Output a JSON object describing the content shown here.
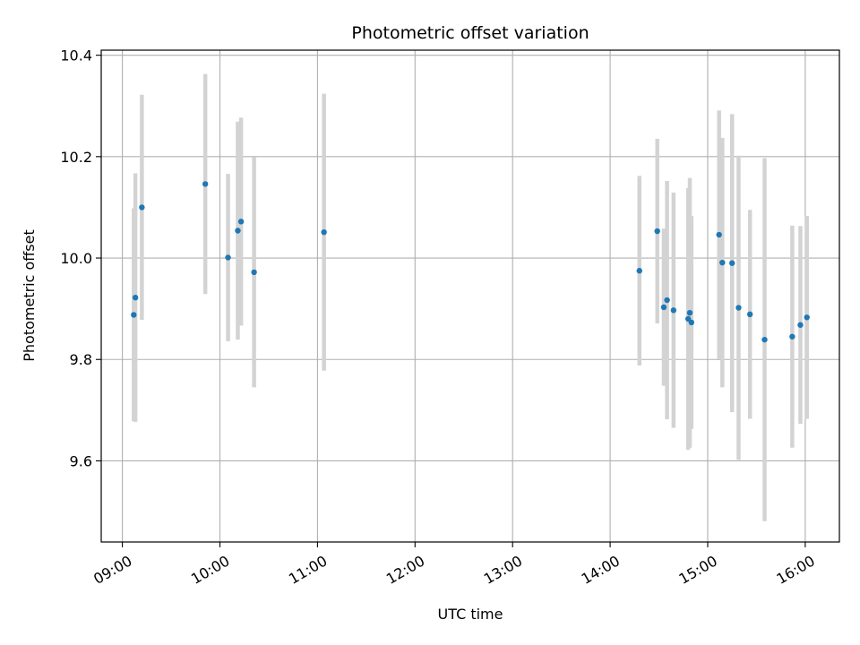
{
  "chart_data": {
    "type": "scatter",
    "title": "Photometric offset variation",
    "xlabel": "UTC time",
    "ylabel": "Photometric offset",
    "grid": true,
    "xlim": [
      "08:47",
      "16:21"
    ],
    "ylim": [
      9.44,
      10.41
    ],
    "x_ticks": [
      "09:00",
      "10:00",
      "11:00",
      "12:00",
      "13:00",
      "14:00",
      "15:00",
      "16:00"
    ],
    "y_ticks": [
      9.6,
      9.8,
      10.0,
      10.2,
      10.4
    ],
    "y_tick_labels": [
      "9.6",
      "9.8",
      "10.0",
      "10.2",
      "10.4"
    ],
    "colors": {
      "point": "#1f77b4",
      "errorbar": "#d3d3d3",
      "grid": "#b0b0b0"
    },
    "points": [
      {
        "t": "09:07",
        "y": 9.888,
        "err": 0.21
      },
      {
        "t": "09:08",
        "y": 9.922,
        "err": 0.245
      },
      {
        "t": "09:12",
        "y": 10.1,
        "err": 0.222
      },
      {
        "t": "09:51",
        "y": 10.146,
        "err": 0.217
      },
      {
        "t": "10:05",
        "y": 10.001,
        "err": 0.165
      },
      {
        "t": "10:11",
        "y": 10.054,
        "err": 0.215
      },
      {
        "t": "10:13",
        "y": 10.072,
        "err": 0.205
      },
      {
        "t": "10:21",
        "y": 9.972,
        "err": 0.227
      },
      {
        "t": "11:04",
        "y": 10.051,
        "err": 0.273
      },
      {
        "t": "14:18",
        "y": 9.975,
        "err": 0.187
      },
      {
        "t": "14:29",
        "y": 10.053,
        "err": 0.182
      },
      {
        "t": "14:33",
        "y": 9.903,
        "err": 0.155
      },
      {
        "t": "14:35",
        "y": 9.917,
        "err": 0.235
      },
      {
        "t": "14:39",
        "y": 9.897,
        "err": 0.232
      },
      {
        "t": "14:48",
        "y": 9.88,
        "err": 0.258
      },
      {
        "t": "14:49",
        "y": 9.892,
        "err": 0.266
      },
      {
        "t": "14:50",
        "y": 9.873,
        "err": 0.21
      },
      {
        "t": "15:07",
        "y": 10.046,
        "err": 0.245
      },
      {
        "t": "15:09",
        "y": 9.991,
        "err": 0.246
      },
      {
        "t": "15:15",
        "y": 9.99,
        "err": 0.294
      },
      {
        "t": "15:19",
        "y": 9.902,
        "err": 0.3
      },
      {
        "t": "15:26",
        "y": 9.889,
        "err": 0.206
      },
      {
        "t": "15:35",
        "y": 9.839,
        "err": 0.358
      },
      {
        "t": "15:52",
        "y": 9.845,
        "err": 0.219
      },
      {
        "t": "15:57",
        "y": 9.868,
        "err": 0.195
      },
      {
        "t": "16:01",
        "y": 9.883,
        "err": 0.2
      }
    ]
  }
}
